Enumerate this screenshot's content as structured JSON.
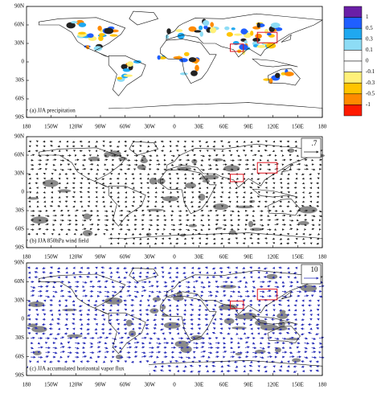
{
  "panels": [
    {
      "label": "(a) JJA precipitation"
    },
    {
      "label": "(b) JJA 850hPa wind field",
      "reference": ".7"
    },
    {
      "label": "(c) JJA accumulated horizontal vapor flux",
      "reference": "10"
    }
  ],
  "lon_labels": [
    "180",
    "150W",
    "120W",
    "90W",
    "60W",
    "30W",
    "0",
    "30E",
    "60E",
    "90E",
    "120E",
    "150E",
    "180"
  ],
  "lat_labels": [
    "90N",
    "60N",
    "30N",
    "0",
    "30S",
    "60S",
    "90S"
  ],
  "colorbar": {
    "labels": [
      "1",
      "0.5",
      "0.3",
      "0.1",
      "0",
      "-0.1",
      "-0.3",
      "-0.5",
      "-1"
    ],
    "colors": [
      "#6a1fa6",
      "#1f5fff",
      "#1fa8f0",
      "#8ddcf5",
      "#ffffff",
      "#ffffff",
      "#fff07a",
      "#ffc400",
      "#ff8a00",
      "#ff1a00"
    ]
  }
}
